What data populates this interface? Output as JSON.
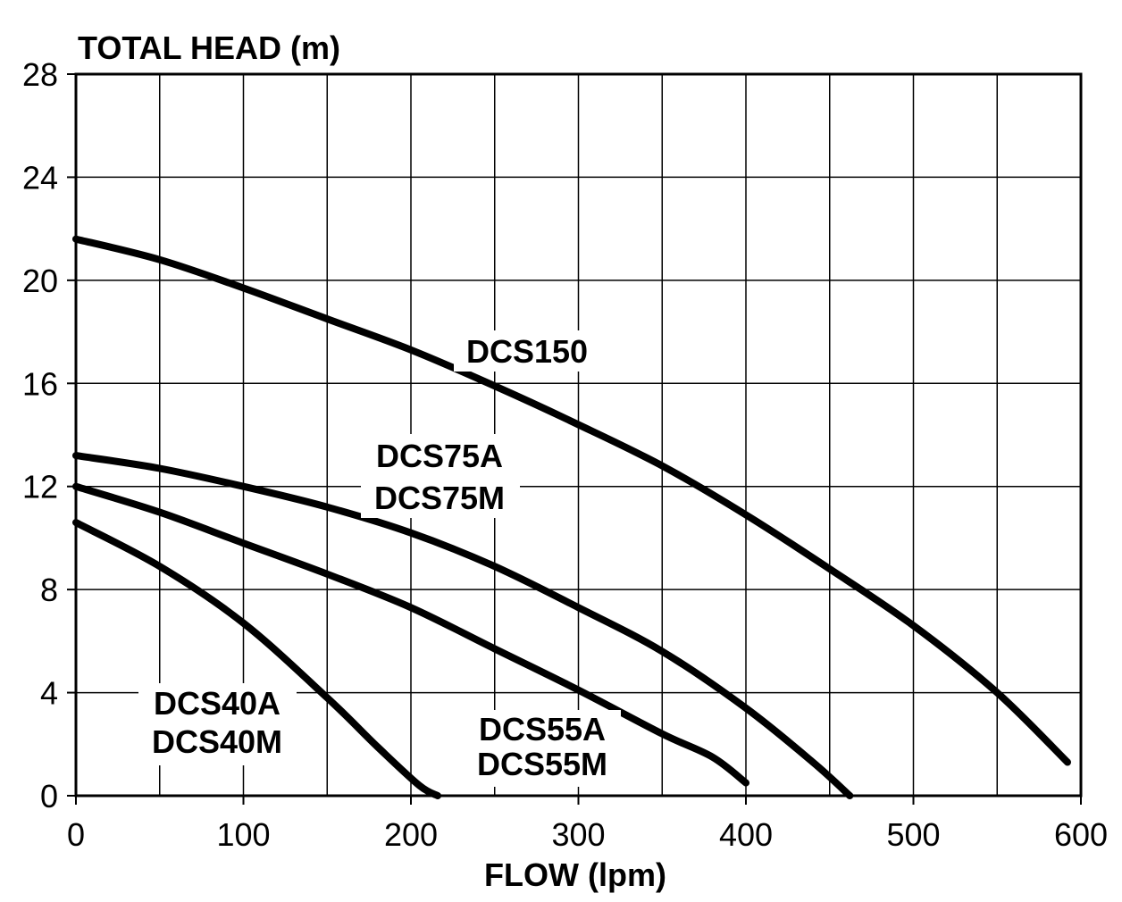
{
  "chart_data": {
    "type": "line",
    "title": "",
    "xlabel": "FLOW (lpm)",
    "ylabel": "TOTAL HEAD (m)",
    "xlim": [
      0,
      600
    ],
    "ylim": [
      0,
      28
    ],
    "x_ticks": [
      0,
      100,
      200,
      300,
      400,
      500,
      600
    ],
    "y_ticks": [
      0,
      4,
      8,
      12,
      16,
      20,
      24,
      28
    ],
    "x_grid_step": 50,
    "grid": true,
    "legend": "none",
    "line_color": "#000000",
    "series": [
      {
        "id": "dcs150",
        "labels": [
          "DCS150"
        ],
        "points": [
          [
            0,
            21.6
          ],
          [
            50,
            20.8
          ],
          [
            100,
            19.7
          ],
          [
            150,
            18.5
          ],
          [
            200,
            17.3
          ],
          [
            250,
            15.9
          ],
          [
            300,
            14.4
          ],
          [
            350,
            12.8
          ],
          [
            400,
            10.9
          ],
          [
            450,
            8.8
          ],
          [
            500,
            6.6
          ],
          [
            550,
            4.0
          ],
          [
            592,
            1.3
          ]
        ]
      },
      {
        "id": "dcs75",
        "labels": [
          "DCS75A",
          "DCS75M"
        ],
        "points": [
          [
            0,
            13.2
          ],
          [
            50,
            12.7
          ],
          [
            100,
            12.0
          ],
          [
            150,
            11.2
          ],
          [
            200,
            10.2
          ],
          [
            250,
            8.9
          ],
          [
            300,
            7.3
          ],
          [
            350,
            5.6
          ],
          [
            400,
            3.4
          ],
          [
            440,
            1.3
          ],
          [
            462,
            0
          ]
        ]
      },
      {
        "id": "dcs55",
        "labels": [
          "DCS55A",
          "DCS55M"
        ],
        "points": [
          [
            0,
            12.0
          ],
          [
            50,
            11.0
          ],
          [
            100,
            9.8
          ],
          [
            150,
            8.6
          ],
          [
            200,
            7.3
          ],
          [
            250,
            5.7
          ],
          [
            300,
            4.1
          ],
          [
            350,
            2.4
          ],
          [
            380,
            1.5
          ],
          [
            400,
            0.5
          ]
        ]
      },
      {
        "id": "dcs40",
        "labels": [
          "DCS40A",
          "DCS40M"
        ],
        "points": [
          [
            0,
            10.6
          ],
          [
            50,
            8.9
          ],
          [
            100,
            6.7
          ],
          [
            150,
            3.8
          ],
          [
            180,
            1.9
          ],
          [
            205,
            0.4
          ],
          [
            216,
            0
          ]
        ]
      }
    ]
  }
}
